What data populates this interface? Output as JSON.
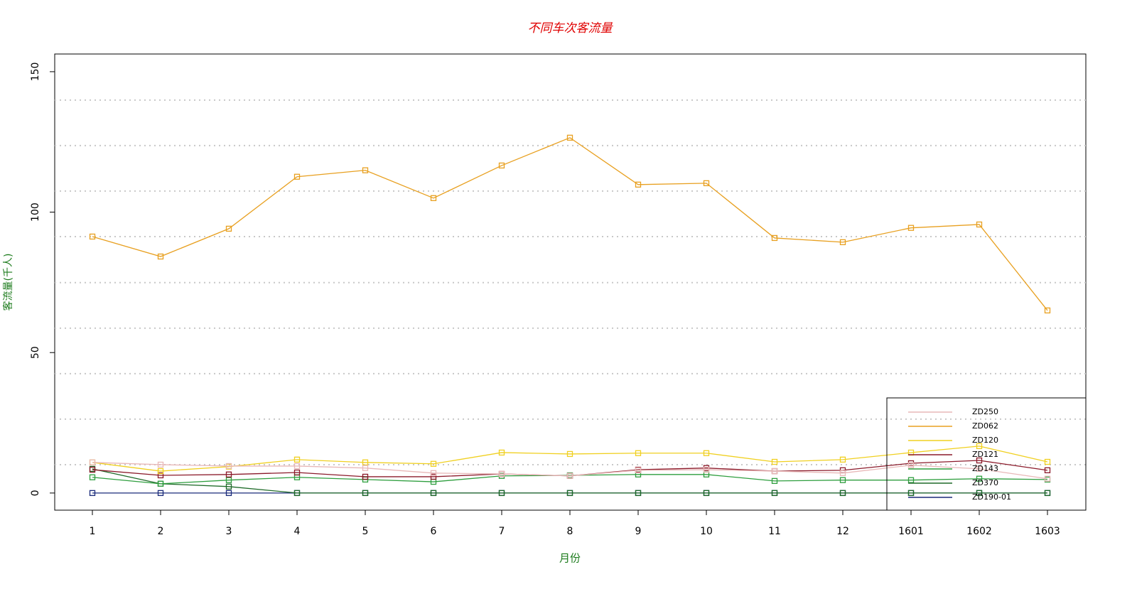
{
  "chart_data": {
    "type": "line",
    "title": "不同车次客流量",
    "x_label": "月份",
    "y_label": "客流量(千人)",
    "categories": [
      "1",
      "2",
      "3",
      "4",
      "5",
      "6",
      "7",
      "8",
      "9",
      "10",
      "11",
      "12",
      "1601",
      "1602",
      "1603"
    ],
    "ylim": [
      -6.1,
      156.3
    ],
    "yticks": [
      0,
      50,
      100,
      150
    ],
    "hgrid": [
      10.1,
      26.3,
      42.5,
      58.7,
      74.9,
      91.3,
      107.5,
      123.7,
      139.9
    ],
    "legend_position": "bottom-right",
    "series": [
      {
        "name": "ZD250",
        "color": "#e8b8b8",
        "values": [
          10.9,
          10.1,
          9.6,
          9.6,
          8.9,
          7.1,
          6.8,
          6.1,
          8.1,
          8.3,
          7.8,
          7.1,
          9.9,
          8.6,
          5.1
        ]
      },
      {
        "name": "ZD062",
        "color": "#e8a020",
        "values": [
          91.3,
          84.2,
          94.1,
          112.6,
          114.9,
          105.0,
          116.6,
          126.5,
          109.8,
          110.3,
          90.8,
          89.3,
          94.4,
          95.6,
          65.0
        ]
      },
      {
        "name": "ZD120",
        "color": "#f0d020",
        "values": [
          10.9,
          7.8,
          9.4,
          11.9,
          10.9,
          10.4,
          14.4,
          13.9,
          14.2,
          14.2,
          11.1,
          11.9,
          14.4,
          16.7,
          11.1
        ]
      },
      {
        "name": "ZD121",
        "color": "#8b1a2a",
        "values": [
          8.3,
          6.3,
          6.6,
          7.3,
          5.8,
          5.8,
          6.8,
          6.1,
          8.3,
          8.9,
          7.8,
          8.1,
          10.6,
          11.6,
          8.1
        ]
      },
      {
        "name": "ZD143",
        "color": "#2e9e3e",
        "values": [
          5.6,
          3.3,
          4.6,
          5.6,
          4.8,
          4.0,
          6.1,
          6.3,
          6.6,
          6.6,
          4.3,
          4.6,
          4.6,
          5.1,
          4.8
        ]
      },
      {
        "name": "ZD370",
        "color": "#1e6a28",
        "values": [
          8.6,
          3.3,
          2.3,
          0,
          0,
          0,
          0,
          0,
          0,
          0,
          0,
          0,
          0,
          0,
          0
        ]
      },
      {
        "name": "ZD190-01",
        "color": "#1a2a7a",
        "values": [
          0,
          0,
          0,
          0,
          0,
          0,
          0,
          0,
          0,
          0,
          0,
          0,
          0,
          0,
          0
        ]
      }
    ]
  }
}
